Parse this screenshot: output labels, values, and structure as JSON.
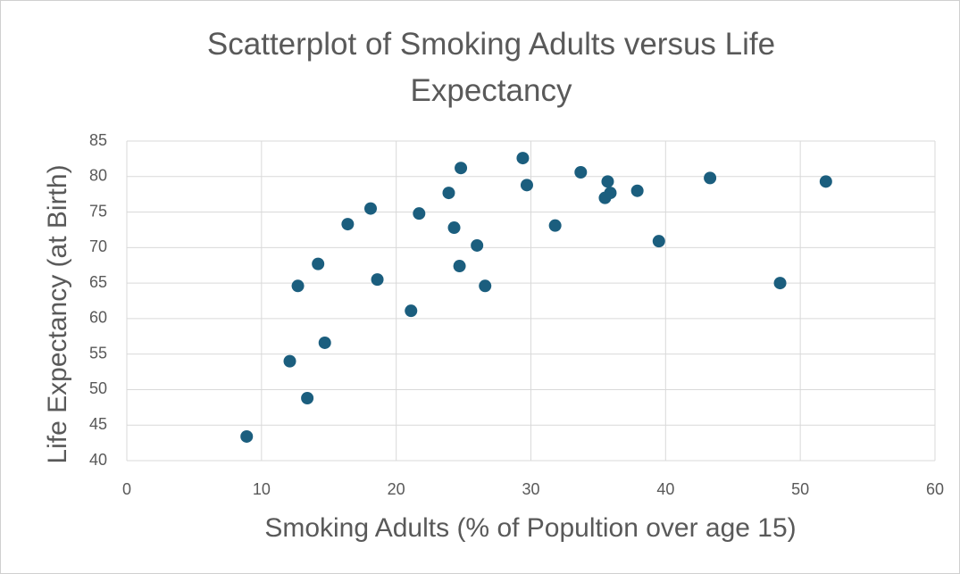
{
  "chart_data": {
    "type": "scatter",
    "title": "Scatterplot of Smoking Adults versus Life Expectancy",
    "xlabel": "Smoking Adults (% of Popultion over age 15)",
    "ylabel": "Life Expectancy (at Birth)",
    "xlim": [
      0,
      60
    ],
    "xticks": [
      0,
      10,
      20,
      30,
      40,
      50,
      60
    ],
    "ylim": [
      40,
      85
    ],
    "yticks": [
      40,
      45,
      50,
      55,
      60,
      65,
      70,
      75,
      80,
      85
    ],
    "grid": true,
    "color": "#1b5e7e",
    "x": [
      8.9,
      12.1,
      13.4,
      12.7,
      14.2,
      14.7,
      16.4,
      18.1,
      18.6,
      21.1,
      21.7,
      23.9,
      24.3,
      24.8,
      24.7,
      26.0,
      26.6,
      29.4,
      29.7,
      31.8,
      33.7,
      35.7,
      35.5,
      35.9,
      37.9,
      39.5,
      43.3,
      48.5,
      51.9
    ],
    "values": [
      43.4,
      54.0,
      48.8,
      64.6,
      67.7,
      56.6,
      73.3,
      75.5,
      65.5,
      61.1,
      74.8,
      77.7,
      72.8,
      81.2,
      67.4,
      70.3,
      64.6,
      82.6,
      78.8,
      73.1,
      80.6,
      79.3,
      77.0,
      77.7,
      78.0,
      70.9,
      79.8,
      65.0,
      79.3
    ]
  }
}
